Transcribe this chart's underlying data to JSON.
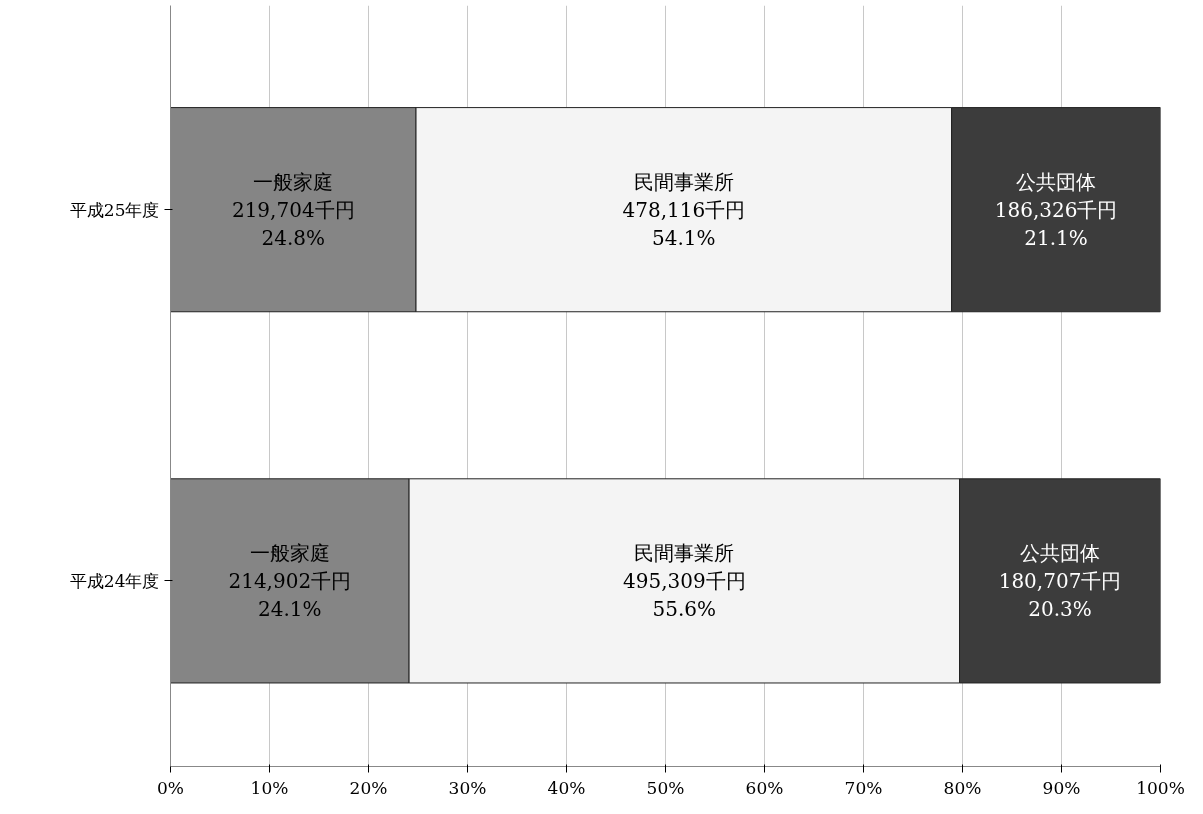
{
  "chart_data": {
    "type": "bar",
    "orientation": "horizontal",
    "stacked": true,
    "categories": [
      "平成25年度",
      "平成24年度"
    ],
    "series": [
      {
        "name": "一般家庭",
        "color": "#858585",
        "values": [
          24.8,
          24.1
        ],
        "value_labels": [
          "219,704千円\n24.8%",
          "214,902千円\n24.1%"
        ]
      },
      {
        "name": "民間事業所",
        "color": "#f4f4f4",
        "values": [
          54.1,
          55.6
        ],
        "value_labels": [
          "478,116千円\n54.1%",
          "495,309千円\n55.6%"
        ]
      },
      {
        "name": "公共団体",
        "color": "#3c3c3c",
        "values": [
          21.1,
          20.3
        ],
        "value_labels": [
          "186,326千円\n21.1%",
          "180,707千円\n20.3%"
        ]
      }
    ],
    "xlim": [
      0,
      100
    ],
    "xticks": [
      {
        "value": 0,
        "label": "0%"
      },
      {
        "value": 10,
        "label": "10%"
      },
      {
        "value": 20,
        "label": "20%"
      },
      {
        "value": 30,
        "label": "30%"
      },
      {
        "value": 40,
        "label": "40%"
      },
      {
        "value": 50,
        "label": "50%"
      },
      {
        "value": 60,
        "label": "60%"
      },
      {
        "value": 70,
        "label": "70%"
      },
      {
        "value": 80,
        "label": "80%"
      },
      {
        "value": 90,
        "label": "90%"
      },
      {
        "value": 100,
        "label": "100%"
      }
    ],
    "grid": "x"
  }
}
